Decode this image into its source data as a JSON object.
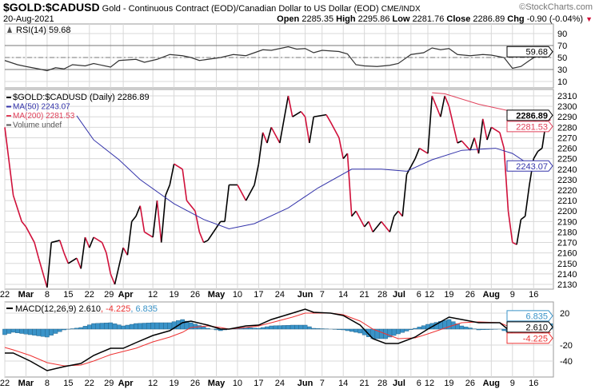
{
  "header": {
    "symbol": "$GOLD:$CADUSD",
    "description": "Gold - Continuous Contract (EOD)/Canadian Dollar to US Dollar (EOD)",
    "exchange": "CME/INDX",
    "watermark": "©StockCharts.com",
    "date": "20-Aug-2021",
    "open_label": "Open",
    "open": "2285.35",
    "high_label": "High",
    "high": "2295.86",
    "low_label": "Low",
    "low": "2281.76",
    "close_label": "Close",
    "close": "2286.89",
    "chg_label": "Chg",
    "chg": "-0.90 (-0.04%)",
    "chg_direction": "down"
  },
  "colors": {
    "up": "#000000",
    "down": "#d0103a",
    "ma50": "#3333aa",
    "ma200": "#e0405a",
    "histogram": "#3a93c8",
    "macd": "#000000",
    "signal": "#ee3333",
    "grid": "#d8d8d8"
  },
  "chart_data": [
    {
      "type": "line",
      "panel": "rsi",
      "title": "RSI(14) 59.68",
      "legend": "RSI(14) 59.68",
      "last_value": "59.68",
      "ylim": [
        0,
        100
      ],
      "ticks": [
        90,
        70,
        50,
        30,
        10
      ],
      "ref_lines": [
        70,
        50,
        30
      ],
      "values": [
        [
          "2021-02-22",
          45
        ],
        [
          "2021-02-25",
          38
        ],
        [
          "2021-03-01",
          35
        ],
        [
          "2021-03-04",
          31
        ],
        [
          "2021-03-08",
          28
        ],
        [
          "2021-03-10",
          33
        ],
        [
          "2021-03-12",
          31
        ],
        [
          "2021-03-16",
          38
        ],
        [
          "2021-03-19",
          36
        ],
        [
          "2021-03-23",
          40
        ],
        [
          "2021-03-29",
          34
        ],
        [
          "2021-03-31",
          45
        ],
        [
          "2021-04-06",
          47
        ],
        [
          "2021-04-08",
          42
        ],
        [
          "2021-04-13",
          47
        ],
        [
          "2021-04-16",
          55
        ],
        [
          "2021-04-21",
          53
        ],
        [
          "2021-04-23",
          50
        ],
        [
          "2021-04-27",
          45
        ],
        [
          "2021-04-29",
          47
        ],
        [
          "2021-05-04",
          50
        ],
        [
          "2021-05-07",
          55
        ],
        [
          "2021-05-12",
          53
        ],
        [
          "2021-05-14",
          58
        ],
        [
          "2021-05-18",
          63
        ],
        [
          "2021-05-20",
          62
        ],
        [
          "2021-05-26",
          68
        ],
        [
          "2021-05-28",
          64
        ],
        [
          "2021-06-01",
          65
        ],
        [
          "2021-06-03",
          58
        ],
        [
          "2021-06-07",
          62
        ],
        [
          "2021-06-11",
          60
        ],
        [
          "2021-06-15",
          56
        ],
        [
          "2021-06-17",
          38
        ],
        [
          "2021-06-21",
          36
        ],
        [
          "2021-06-24",
          35
        ],
        [
          "2021-06-29",
          37
        ],
        [
          "2021-07-01",
          40
        ],
        [
          "2021-07-06",
          55
        ],
        [
          "2021-07-09",
          58
        ],
        [
          "2021-07-13",
          66
        ],
        [
          "2021-07-15",
          63
        ],
        [
          "2021-07-19",
          65
        ],
        [
          "2021-07-21",
          55
        ],
        [
          "2021-07-26",
          53
        ],
        [
          "2021-07-29",
          55
        ],
        [
          "2021-08-02",
          54
        ],
        [
          "2021-08-05",
          50
        ],
        [
          "2021-08-09",
          32
        ],
        [
          "2021-08-11",
          35
        ],
        [
          "2021-08-13",
          45
        ],
        [
          "2021-08-17",
          54
        ],
        [
          "2021-08-19",
          58
        ],
        [
          "2021-08-20",
          59.68
        ]
      ]
    },
    {
      "type": "line",
      "panel": "price",
      "legend": [
        "$GOLD:$CADUSD (Daily) 2286.89",
        "MA(50) 2243.07",
        "MA(200) 2281.53",
        "Volume undef"
      ],
      "last_price": "2286.89",
      "last_ma50": "2243.07",
      "last_ma200": "2281.53",
      "ylim": [
        2120,
        2315
      ],
      "ticks": [
        2310,
        2300,
        2290,
        2280,
        2270,
        2260,
        2250,
        2240,
        2230,
        2220,
        2210,
        2200,
        2190,
        2180,
        2170,
        2160,
        2150,
        2140,
        2130
      ],
      "close": [
        [
          "2021-02-22",
          2280
        ],
        [
          "2021-02-24",
          2215
        ],
        [
          "2021-02-26",
          2190
        ],
        [
          "2021-03-01",
          2185
        ],
        [
          "2021-03-03",
          2170
        ],
        [
          "2021-03-04",
          2155
        ],
        [
          "2021-03-08",
          2127
        ],
        [
          "2021-03-09",
          2170
        ],
        [
          "2021-03-11",
          2172
        ],
        [
          "2021-03-12",
          2160
        ],
        [
          "2021-03-15",
          2150
        ],
        [
          "2021-03-17",
          2155
        ],
        [
          "2021-03-18",
          2145
        ],
        [
          "2021-03-19",
          2175
        ],
        [
          "2021-03-22",
          2165
        ],
        [
          "2021-03-23",
          2175
        ],
        [
          "2021-03-25",
          2170
        ],
        [
          "2021-03-26",
          2160
        ],
        [
          "2021-03-29",
          2140
        ],
        [
          "2021-03-30",
          2130
        ],
        [
          "2021-04-01",
          2165
        ],
        [
          "2021-04-02",
          2158
        ],
        [
          "2021-04-05",
          2190
        ],
        [
          "2021-04-06",
          2195
        ],
        [
          "2021-04-07",
          2205
        ],
        [
          "2021-04-08",
          2180
        ],
        [
          "2021-04-12",
          2175
        ],
        [
          "2021-04-13",
          2210
        ],
        [
          "2021-04-14",
          2170
        ],
        [
          "2021-04-15",
          2215
        ],
        [
          "2021-04-16",
          2225
        ],
        [
          "2021-04-19",
          2245
        ],
        [
          "2021-04-21",
          2240
        ],
        [
          "2021-04-22",
          2210
        ],
        [
          "2021-04-26",
          2200
        ],
        [
          "2021-04-27",
          2180
        ],
        [
          "2021-04-28",
          2170
        ],
        [
          "2021-04-29",
          2172
        ],
        [
          "2021-05-04",
          2190
        ],
        [
          "2021-05-05",
          2190
        ],
        [
          "2021-05-06",
          2225
        ],
        [
          "2021-05-10",
          2225
        ],
        [
          "2021-05-12",
          2210
        ],
        [
          "2021-05-14",
          2225
        ],
        [
          "2021-05-17",
          2245
        ],
        [
          "2021-05-18",
          2275
        ],
        [
          "2021-05-19",
          2265
        ],
        [
          "2021-05-20",
          2280
        ],
        [
          "2021-05-24",
          2265
        ],
        [
          "2021-05-26",
          2310
        ],
        [
          "2021-05-27",
          2290
        ],
        [
          "2021-05-31",
          2295
        ],
        [
          "2021-06-01",
          2290
        ],
        [
          "2021-06-02",
          2265
        ],
        [
          "2021-06-03",
          2290
        ],
        [
          "2021-06-08",
          2292
        ],
        [
          "2021-06-09",
          2285
        ],
        [
          "2021-06-11",
          2270
        ],
        [
          "2021-06-14",
          2250
        ],
        [
          "2021-06-15",
          2255
        ],
        [
          "2021-06-16",
          2195
        ],
        [
          "2021-06-17",
          2200
        ],
        [
          "2021-06-21",
          2185
        ],
        [
          "2021-06-22",
          2190
        ],
        [
          "2021-06-23",
          2180
        ],
        [
          "2021-06-25",
          2190
        ],
        [
          "2021-06-29",
          2180
        ],
        [
          "2021-06-30",
          2195
        ],
        [
          "2021-07-01",
          2200
        ],
        [
          "2021-07-02",
          2195
        ],
        [
          "2021-07-05",
          2235
        ],
        [
          "2021-07-07",
          2250
        ],
        [
          "2021-07-08",
          2260
        ],
        [
          "2021-07-12",
          2255
        ],
        [
          "2021-07-13",
          2310
        ],
        [
          "2021-07-15",
          2290
        ],
        [
          "2021-07-16",
          2310
        ],
        [
          "2021-07-19",
          2300
        ],
        [
          "2021-07-21",
          2265
        ],
        [
          "2021-07-22",
          2267
        ],
        [
          "2021-07-26",
          2258
        ],
        [
          "2021-07-27",
          2270
        ],
        [
          "2021-07-28",
          2255
        ],
        [
          "2021-07-29",
          2288
        ],
        [
          "2021-07-30",
          2268
        ],
        [
          "2021-08-02",
          2280
        ],
        [
          "2021-08-04",
          2275
        ],
        [
          "2021-08-05",
          2260
        ],
        [
          "2021-08-06",
          2200
        ],
        [
          "2021-08-09",
          2170
        ],
        [
          "2021-08-10",
          2168
        ],
        [
          "2021-08-11",
          2192
        ],
        [
          "2021-08-12",
          2195
        ],
        [
          "2021-08-13",
          2225
        ],
        [
          "2021-08-16",
          2250
        ],
        [
          "2021-08-17",
          2257
        ],
        [
          "2021-08-18",
          2260
        ],
        [
          "2021-08-19",
          2287
        ],
        [
          "2021-08-20",
          2286.89
        ]
      ],
      "ma50": [
        [
          "2021-03-17",
          2291
        ],
        [
          "2021-03-23",
          2268
        ],
        [
          "2021-03-31",
          2249
        ],
        [
          "2021-04-07",
          2230
        ],
        [
          "2021-04-19",
          2207
        ],
        [
          "2021-04-28",
          2192
        ],
        [
          "2021-05-06",
          2183
        ],
        [
          "2021-05-14",
          2188
        ],
        [
          "2021-05-26",
          2203
        ],
        [
          "2021-06-04",
          2222
        ],
        [
          "2021-06-16",
          2240
        ],
        [
          "2021-06-25",
          2240
        ],
        [
          "2021-07-05",
          2238
        ],
        [
          "2021-07-13",
          2249
        ],
        [
          "2021-07-22",
          2258
        ],
        [
          "2021-08-03",
          2260
        ],
        [
          "2021-08-09",
          2255
        ],
        [
          "2021-08-12",
          2247
        ],
        [
          "2021-08-20",
          2243.07
        ]
      ],
      "ma200": [
        [
          "2021-07-13",
          2313
        ],
        [
          "2021-07-16",
          2312
        ],
        [
          "2021-07-28",
          2302
        ],
        [
          "2021-08-09",
          2295
        ],
        [
          "2021-08-12",
          2289
        ],
        [
          "2021-08-20",
          2281.53
        ]
      ]
    },
    {
      "type": "line",
      "panel": "macd",
      "legend": "MACD(12,26,9)",
      "macd_value": "2.610",
      "signal_value": "-4.225",
      "hist_value": "6.835",
      "ticks": [
        20,
        -20,
        -40
      ],
      "ylim": [
        -60,
        30
      ],
      "values": [
        [
          "2021-02-22",
          -30,
          -23
        ],
        [
          "2021-02-24",
          -30,
          -26
        ],
        [
          "2021-03-02",
          -40,
          -33
        ],
        [
          "2021-03-08",
          -52,
          -42
        ],
        [
          "2021-03-12",
          -47,
          -46
        ],
        [
          "2021-03-18",
          -43,
          -45
        ],
        [
          "2021-03-23",
          -33,
          -40
        ],
        [
          "2021-03-29",
          -24,
          -32
        ],
        [
          "2021-04-01",
          -24,
          -28
        ],
        [
          "2021-04-06",
          -17,
          -24
        ],
        [
          "2021-04-12",
          -8,
          -16
        ],
        [
          "2021-04-16",
          -2,
          -10
        ],
        [
          "2021-04-21",
          8,
          -4
        ],
        [
          "2021-04-23",
          10,
          2
        ],
        [
          "2021-04-29",
          5,
          4
        ],
        [
          "2021-05-04",
          0,
          2
        ],
        [
          "2021-05-06",
          0,
          0
        ],
        [
          "2021-05-12",
          4,
          2
        ],
        [
          "2021-05-17",
          5,
          4
        ],
        [
          "2021-05-20",
          12,
          8
        ],
        [
          "2021-05-27",
          20,
          15
        ],
        [
          "2021-06-01",
          25,
          20
        ],
        [
          "2021-06-03",
          21,
          20
        ],
        [
          "2021-06-09",
          20,
          20
        ],
        [
          "2021-06-14",
          17,
          18
        ],
        [
          "2021-06-18",
          5,
          10
        ],
        [
          "2021-06-23",
          -12,
          0
        ],
        [
          "2021-06-28",
          -18,
          -6
        ],
        [
          "2021-07-01",
          -18,
          -12
        ],
        [
          "2021-07-07",
          -10,
          -11
        ],
        [
          "2021-07-12",
          0,
          -6
        ],
        [
          "2021-07-19",
          15,
          3
        ],
        [
          "2021-07-22",
          12,
          8
        ],
        [
          "2021-07-28",
          8,
          9
        ],
        [
          "2021-08-04",
          8,
          8
        ],
        [
          "2021-08-09",
          -5,
          1
        ],
        [
          "2021-08-12",
          -15,
          -7
        ],
        [
          "2021-08-17",
          -8,
          -8
        ],
        [
          "2021-08-20",
          2.61,
          -4.225
        ]
      ]
    }
  ],
  "x_axis": {
    "ticks": [
      [
        "2021-02-22",
        "22"
      ],
      [
        "2021-03-01",
        "Mar"
      ],
      [
        "2021-03-08",
        "8"
      ],
      [
        "2021-03-15",
        "15"
      ],
      [
        "2021-03-22",
        "22"
      ],
      [
        "2021-03-29",
        "29"
      ],
      [
        "2021-04-01",
        "Apr"
      ],
      [
        "2021-04-12",
        "12"
      ],
      [
        "2021-04-19",
        "19"
      ],
      [
        "2021-04-26",
        "26"
      ],
      [
        "2021-05-03",
        "May"
      ],
      [
        "2021-05-10",
        "10"
      ],
      [
        "2021-05-17",
        "17"
      ],
      [
        "2021-05-24",
        "24"
      ],
      [
        "2021-06-01",
        "Jun"
      ],
      [
        "2021-06-07",
        "7"
      ],
      [
        "2021-06-14",
        "14"
      ],
      [
        "2021-06-21",
        "21"
      ],
      [
        "2021-06-28",
        "28"
      ],
      [
        "2021-07-01",
        "Jul"
      ],
      [
        "2021-07-06",
        "6"
      ],
      [
        "2021-07-12",
        "12"
      ],
      [
        "2021-07-19",
        "19"
      ],
      [
        "2021-07-26",
        "26"
      ],
      [
        "2021-08-02",
        "Aug"
      ],
      [
        "2021-08-09",
        "9"
      ],
      [
        "2021-08-16",
        "16"
      ]
    ],
    "bold": [
      "Mar",
      "Apr",
      "May",
      "Jun",
      "Jul",
      "Aug"
    ]
  }
}
